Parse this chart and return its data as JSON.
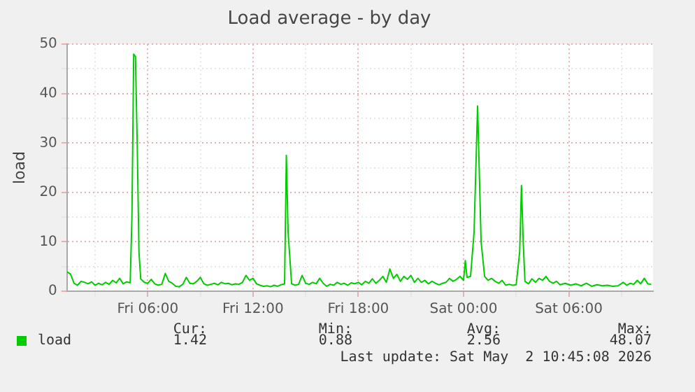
{
  "chart_data": {
    "type": "line",
    "title": "Load average - by day",
    "ylabel": "load",
    "x": [
      "2026-05-01T01:24",
      "2026-05-01T01:36",
      "2026-05-01T01:48",
      "2026-05-01T02:00",
      "2026-05-01T02:12",
      "2026-05-01T02:24",
      "2026-05-01T02:36",
      "2026-05-01T02:48",
      "2026-05-01T03:00",
      "2026-05-01T03:12",
      "2026-05-01T03:24",
      "2026-05-01T03:36",
      "2026-05-01T03:48",
      "2026-05-01T04:00",
      "2026-05-01T04:12",
      "2026-05-01T04:24",
      "2026-05-01T04:36",
      "2026-05-01T04:48",
      "2026-05-01T05:00",
      "2026-05-01T05:06",
      "2026-05-01T05:12",
      "2026-05-01T05:18",
      "2026-05-01T05:24",
      "2026-05-01T05:30",
      "2026-05-01T05:36",
      "2026-05-01T05:48",
      "2026-05-01T06:00",
      "2026-05-01T06:12",
      "2026-05-01T06:24",
      "2026-05-01T06:36",
      "2026-05-01T06:48",
      "2026-05-01T07:00",
      "2026-05-01T07:12",
      "2026-05-01T07:24",
      "2026-05-01T07:36",
      "2026-05-01T07:48",
      "2026-05-01T08:00",
      "2026-05-01T08:12",
      "2026-05-01T08:24",
      "2026-05-01T08:36",
      "2026-05-01T08:48",
      "2026-05-01T09:00",
      "2026-05-01T09:12",
      "2026-05-01T09:24",
      "2026-05-01T09:36",
      "2026-05-01T09:48",
      "2026-05-01T10:00",
      "2026-05-01T10:12",
      "2026-05-01T10:24",
      "2026-05-01T10:36",
      "2026-05-01T10:48",
      "2026-05-01T11:00",
      "2026-05-01T11:12",
      "2026-05-01T11:24",
      "2026-05-01T11:36",
      "2026-05-01T11:48",
      "2026-05-01T12:00",
      "2026-05-01T12:12",
      "2026-05-01T12:24",
      "2026-05-01T12:36",
      "2026-05-01T12:48",
      "2026-05-01T13:00",
      "2026-05-01T13:12",
      "2026-05-01T13:24",
      "2026-05-01T13:36",
      "2026-05-01T13:48",
      "2026-05-01T13:54",
      "2026-05-01T14:00",
      "2026-05-01T14:12",
      "2026-05-01T14:24",
      "2026-05-01T14:36",
      "2026-05-01T14:48",
      "2026-05-01T15:00",
      "2026-05-01T15:12",
      "2026-05-01T15:24",
      "2026-05-01T15:36",
      "2026-05-01T15:48",
      "2026-05-01T16:00",
      "2026-05-01T16:12",
      "2026-05-01T16:24",
      "2026-05-01T16:36",
      "2026-05-01T16:48",
      "2026-05-01T17:00",
      "2026-05-01T17:12",
      "2026-05-01T17:24",
      "2026-05-01T17:36",
      "2026-05-01T17:48",
      "2026-05-01T18:00",
      "2026-05-01T18:12",
      "2026-05-01T18:24",
      "2026-05-01T18:36",
      "2026-05-01T18:48",
      "2026-05-01T19:00",
      "2026-05-01T19:12",
      "2026-05-01T19:24",
      "2026-05-01T19:36",
      "2026-05-01T19:48",
      "2026-05-01T20:00",
      "2026-05-01T20:12",
      "2026-05-01T20:24",
      "2026-05-01T20:36",
      "2026-05-01T20:48",
      "2026-05-01T21:00",
      "2026-05-01T21:12",
      "2026-05-01T21:24",
      "2026-05-01T21:36",
      "2026-05-01T21:48",
      "2026-05-01T22:00",
      "2026-05-01T22:12",
      "2026-05-01T22:24",
      "2026-05-01T22:36",
      "2026-05-01T22:48",
      "2026-05-01T23:00",
      "2026-05-01T23:12",
      "2026-05-01T23:24",
      "2026-05-01T23:36",
      "2026-05-01T23:48",
      "2026-05-02T00:00",
      "2026-05-02T00:06",
      "2026-05-02T00:12",
      "2026-05-02T00:24",
      "2026-05-02T00:36",
      "2026-05-02T00:48",
      "2026-05-02T01:00",
      "2026-05-02T01:12",
      "2026-05-02T01:24",
      "2026-05-02T01:36",
      "2026-05-02T01:48",
      "2026-05-02T02:00",
      "2026-05-02T02:12",
      "2026-05-02T02:24",
      "2026-05-02T02:36",
      "2026-05-02T02:48",
      "2026-05-02T03:00",
      "2026-05-02T03:12",
      "2026-05-02T03:18",
      "2026-05-02T03:24",
      "2026-05-02T03:30",
      "2026-05-02T03:42",
      "2026-05-02T03:54",
      "2026-05-02T04:06",
      "2026-05-02T04:18",
      "2026-05-02T04:30",
      "2026-05-02T04:42",
      "2026-05-02T04:54",
      "2026-05-02T05:06",
      "2026-05-02T05:18",
      "2026-05-02T05:30",
      "2026-05-02T05:48",
      "2026-05-02T06:06",
      "2026-05-02T06:24",
      "2026-05-02T06:42",
      "2026-05-02T07:00",
      "2026-05-02T07:18",
      "2026-05-02T07:36",
      "2026-05-02T07:54",
      "2026-05-02T08:12",
      "2026-05-02T08:30",
      "2026-05-02T08:48",
      "2026-05-02T09:06",
      "2026-05-02T09:18",
      "2026-05-02T09:30",
      "2026-05-02T09:42",
      "2026-05-02T09:54",
      "2026-05-02T10:06",
      "2026-05-02T10:18",
      "2026-05-02T10:30",
      "2026-05-02T10:42"
    ],
    "series": [
      {
        "name": "load",
        "color": "#00cc00",
        "values": [
          3.9,
          3.5,
          1.6,
          1.2,
          2.0,
          1.8,
          1.5,
          1.9,
          1.2,
          1.6,
          1.3,
          1.8,
          1.4,
          2.2,
          1.7,
          2.6,
          1.5,
          1.9,
          1.7,
          15,
          48,
          47.5,
          30,
          8,
          2.5,
          1.8,
          1.6,
          2.4,
          1.5,
          1.2,
          1.4,
          3.6,
          2.0,
          1.6,
          1.0,
          0.9,
          1.4,
          2.8,
          1.6,
          1.5,
          2.0,
          2.8,
          1.5,
          1.2,
          1.4,
          1.6,
          1.3,
          1.8,
          1.5,
          1.6,
          1.3,
          1.5,
          1.4,
          1.8,
          3.2,
          2.2,
          2.6,
          1.5,
          1.2,
          1.0,
          1.1,
          0.9,
          1.2,
          1.0,
          1.3,
          1.5,
          27.5,
          12,
          1.5,
          1.2,
          1.4,
          3.2,
          1.6,
          1.4,
          1.8,
          1.5,
          2.6,
          1.6,
          1.0,
          1.4,
          1.2,
          1.8,
          1.4,
          1.6,
          1.2,
          1.7,
          1.5,
          1.8,
          1.3,
          2.0,
          1.6,
          2.5,
          1.6,
          2.2,
          3.0,
          1.8,
          4.5,
          2.6,
          3.4,
          2.0,
          3.0,
          2.4,
          3.2,
          1.8,
          2.6,
          1.8,
          2.2,
          1.5,
          2.0,
          1.6,
          1.3,
          1.6,
          1.8,
          2.6,
          2.0,
          2.4,
          3.0,
          2.2,
          6.2,
          2.8,
          3.0,
          12,
          37.5,
          10,
          3.0,
          2.2,
          2.6,
          2.0,
          1.6,
          2.2,
          1.2,
          1.4,
          1.2,
          1.3,
          8,
          21.4,
          10,
          2.0,
          1.5,
          2.5,
          1.8,
          2.6,
          2.2,
          3.0,
          2.0,
          1.6,
          2.0,
          1.3,
          1.6,
          1.2,
          1.5,
          1.1,
          1.6,
          1.0,
          1.3,
          1.1,
          1.2,
          1.0,
          1.1,
          1.8,
          1.2,
          1.6,
          1.4,
          2.2,
          1.5,
          2.6,
          1.5,
          1.4
        ]
      }
    ],
    "xlim": [
      "2026-05-01T01:24",
      "2026-05-02T10:48"
    ],
    "xticks": [
      {
        "value": "2026-05-01T03:00",
        "label": null
      },
      {
        "value": "2026-05-01T06:00",
        "label": "Fri 06:00"
      },
      {
        "value": "2026-05-01T09:00",
        "label": null
      },
      {
        "value": "2026-05-01T12:00",
        "label": "Fri 12:00"
      },
      {
        "value": "2026-05-01T15:00",
        "label": null
      },
      {
        "value": "2026-05-01T18:00",
        "label": "Fri 18:00"
      },
      {
        "value": "2026-05-01T21:00",
        "label": null
      },
      {
        "value": "2026-05-02T00:00",
        "label": "Sat 00:00"
      },
      {
        "value": "2026-05-02T03:00",
        "label": null
      },
      {
        "value": "2026-05-02T06:00",
        "label": "Sat 06:00"
      },
      {
        "value": "2026-05-02T09:00",
        "label": null
      }
    ],
    "ylim": [
      0,
      50
    ],
    "yticks": [
      0,
      {
        "value": 5,
        "label": null
      },
      10,
      {
        "value": 15,
        "label": null
      },
      20,
      {
        "value": 25,
        "label": null
      },
      30,
      {
        "value": 35,
        "label": null
      },
      40,
      {
        "value": 45,
        "label": null
      },
      50
    ],
    "grid": true,
    "legend": "bottom left",
    "marker": "none",
    "line_style": "solid",
    "annotations": [
      "Cur:",
      "Min:",
      "Avg:",
      "Max:",
      "1.42",
      "0.88",
      "2.56",
      "48.07",
      "Last update: Sat May  2 10:45:08 2026"
    ]
  }
}
